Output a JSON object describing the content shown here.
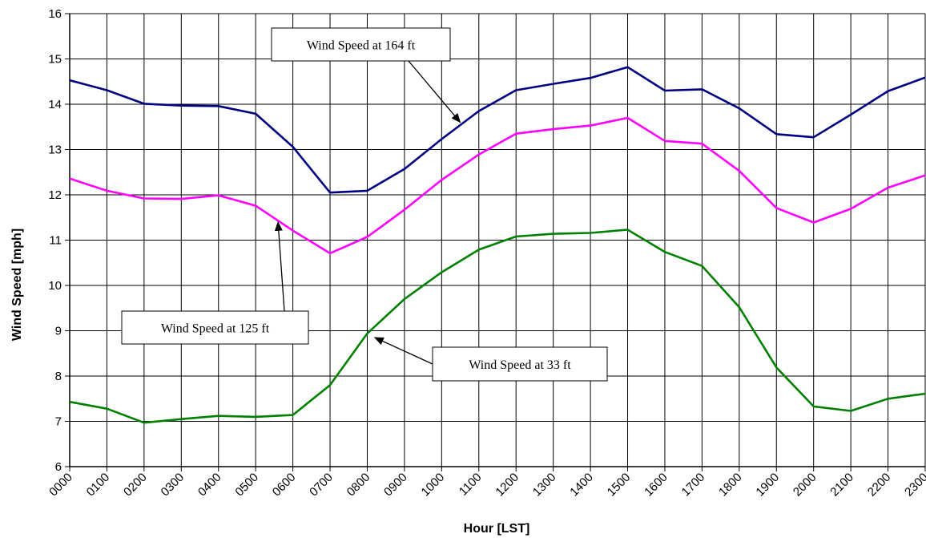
{
  "chart_data": {
    "type": "line",
    "title": "",
    "xlabel": "Hour [LST]",
    "ylabel": "Wind Speed [mph]",
    "categories": [
      "0000",
      "0100",
      "0200",
      "0300",
      "0400",
      "0500",
      "0600",
      "0700",
      "0800",
      "0900",
      "1000",
      "1100",
      "1200",
      "1300",
      "1400",
      "1500",
      "1600",
      "1700",
      "1800",
      "1900",
      "2000",
      "2100",
      "2200",
      "2300"
    ],
    "ylim": [
      6,
      16
    ],
    "yticks": [
      6,
      7,
      8,
      9,
      10,
      11,
      12,
      13,
      14,
      15,
      16
    ],
    "grid": true,
    "legend": "none",
    "series": [
      {
        "name": "Wind Speed at 164 ft",
        "color": "#000080",
        "values": [
          14.53,
          14.31,
          14.01,
          13.97,
          13.96,
          13.79,
          13.06,
          12.05,
          12.09,
          12.57,
          13.23,
          13.85,
          14.31,
          14.45,
          14.58,
          14.82,
          14.3,
          14.33,
          13.91,
          13.34,
          13.27,
          13.77,
          14.29,
          14.59
        ]
      },
      {
        "name": "Wind Speed at 125 ft",
        "color": "#FF00FF",
        "values": [
          12.36,
          12.09,
          11.92,
          11.91,
          11.99,
          11.76,
          11.21,
          10.71,
          11.07,
          11.67,
          12.33,
          12.89,
          13.35,
          13.45,
          13.53,
          13.7,
          13.19,
          13.13,
          12.53,
          11.71,
          11.39,
          11.69,
          12.16,
          12.43
        ]
      },
      {
        "name": "Wind Speed at 33 ft",
        "color": "#008000",
        "values": [
          7.43,
          7.28,
          6.97,
          7.05,
          7.12,
          7.1,
          7.14,
          7.8,
          8.94,
          9.7,
          10.29,
          10.79,
          11.08,
          11.14,
          11.16,
          11.23,
          10.74,
          10.43,
          9.52,
          8.19,
          7.33,
          7.23,
          7.5,
          7.61
        ]
      }
    ],
    "annotations": [
      {
        "text": "Wind Speed at 164 ft",
        "series": 0,
        "target_x": 10.5,
        "target_y": 13.6
      },
      {
        "text": "Wind Speed at 125 ft",
        "series": 1,
        "target_x": 5.6,
        "target_y": 11.4
      },
      {
        "text": "Wind Speed at 33 ft",
        "series": 2,
        "target_x": 8.2,
        "target_y": 8.85
      }
    ]
  }
}
